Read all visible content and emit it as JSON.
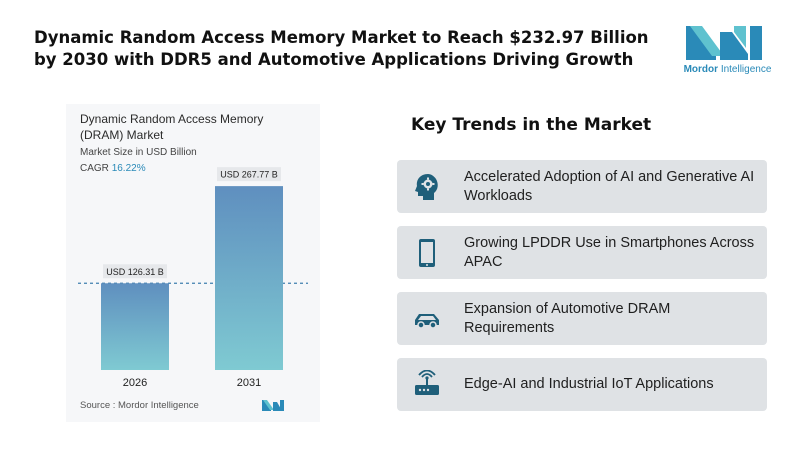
{
  "headline": "Dynamic Random Access Memory Market to Reach $232.97 Billion by 2030 with DDR5 and Automotive Applications Driving Growth",
  "brand": {
    "name_bold": "Mordor",
    "name_light": "Intelligence"
  },
  "chart_data": {
    "type": "bar",
    "title": "Dynamic Random Access Memory (DRAM) Market",
    "subtitle": "Market Size in USD Billion",
    "cagr_label": "CAGR",
    "cagr_value": "16.22%",
    "categories": [
      "2026",
      "2031"
    ],
    "values": [
      126.31,
      267.77
    ],
    "data_labels": [
      "USD 126.31 B",
      "USD 267.77 B"
    ],
    "ylim": [
      0,
      300
    ],
    "reference_line_value": 126.31,
    "source": "Source : Mordor Intelligence",
    "colors": {
      "bar_top": "#5f8fbf",
      "bar_bottom": "#7fcad2"
    }
  },
  "trends": {
    "title": "Key Trends in the Market",
    "items": [
      {
        "text": "Accelerated Adoption of AI and Generative AI Workloads",
        "icon": "ai-head-gear-icon"
      },
      {
        "text": "Growing LPDDR Use in Smartphones Across APAC",
        "icon": "smartphone-icon"
      },
      {
        "text": "Expansion of Automotive DRAM Requirements",
        "icon": "car-icon"
      },
      {
        "text": "Edge-AI and Industrial IoT Applications",
        "icon": "iot-router-icon"
      }
    ]
  }
}
